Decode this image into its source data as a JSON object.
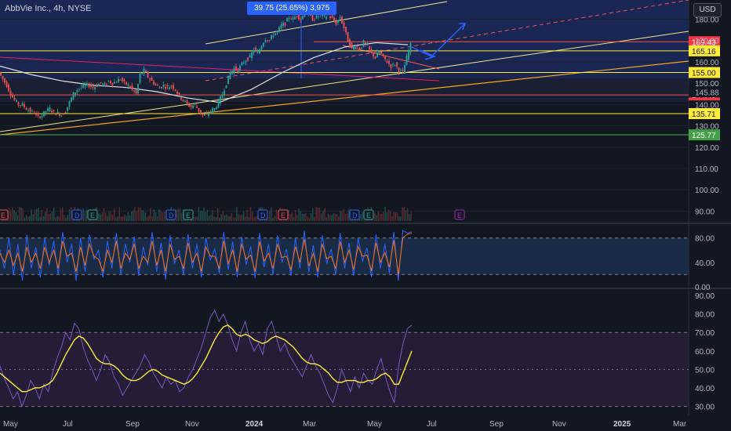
{
  "header": {
    "symbol": "AbbVie Inc., 4h, NYSE",
    "currency": "USD",
    "measure": "39.75 (25.65%) 3,975"
  },
  "colors": {
    "background": "#131722",
    "up": "#26a69a",
    "down": "#ef5350",
    "accent": "#2962ff",
    "stoch_k": "#2962ff",
    "stoch_d": "#ff6d00",
    "rsi": "#7e57c2",
    "rsi_ma": "#ffeb3b",
    "channel": "#f0e68c",
    "trend": "#f5a623"
  },
  "chart_data": [
    {
      "type": "candlestick",
      "panel": "price",
      "y_axis_ticks": [
        "180.00",
        "170.00",
        "160.00",
        "150.00",
        "145.88",
        "140.00",
        "130.00",
        "120.00",
        "110.00",
        "100.00",
        "90.00"
      ],
      "y_tick_values": [
        180,
        170,
        160,
        150,
        145.88,
        140,
        130,
        120,
        110,
        100,
        90
      ],
      "ylim": [
        85,
        189
      ],
      "x_axis_ticks": [
        "May",
        "Jul",
        "Sep",
        "Nov",
        "2024",
        "Mar",
        "May",
        "Jul",
        "Sep",
        "Nov",
        "2025",
        "Mar"
      ],
      "x_tick_labels_bold": [
        "2024",
        "2025"
      ],
      "price_path": [
        [
          0,
          155
        ],
        [
          5,
          152
        ],
        [
          10,
          149
        ],
        [
          15,
          145
        ],
        [
          20,
          142
        ],
        [
          25,
          140
        ],
        [
          30,
          140
        ],
        [
          35,
          138
        ],
        [
          40,
          137
        ],
        [
          45,
          136
        ],
        [
          50,
          134
        ],
        [
          55,
          135
        ],
        [
          60,
          137
        ],
        [
          65,
          138
        ],
        [
          70,
          136
        ],
        [
          75,
          136
        ],
        [
          80,
          135
        ],
        [
          85,
          137
        ],
        [
          90,
          141
        ],
        [
          95,
          145
        ],
        [
          100,
          147
        ],
        [
          105,
          148
        ],
        [
          110,
          149
        ],
        [
          115,
          149
        ],
        [
          120,
          148
        ],
        [
          125,
          149
        ],
        [
          130,
          150
        ],
        [
          135,
          149
        ],
        [
          140,
          151
        ],
        [
          145,
          150
        ],
        [
          150,
          151
        ],
        [
          155,
          152
        ],
        [
          160,
          150
        ],
        [
          165,
          149
        ],
        [
          170,
          147
        ],
        [
          175,
          145
        ],
        [
          180,
          154
        ],
        [
          185,
          156
        ],
        [
          190,
          153
        ],
        [
          195,
          151
        ],
        [
          200,
          149
        ],
        [
          205,
          148
        ],
        [
          210,
          149
        ],
        [
          215,
          148
        ],
        [
          220,
          149
        ],
        [
          225,
          147
        ],
        [
          230,
          144
        ],
        [
          235,
          142
        ],
        [
          240,
          140
        ],
        [
          245,
          139
        ],
        [
          250,
          140
        ],
        [
          255,
          137
        ],
        [
          260,
          135
        ],
        [
          265,
          135
        ],
        [
          270,
          137
        ],
        [
          275,
          138
        ],
        [
          280,
          141
        ],
        [
          285,
          145
        ],
        [
          290,
          150
        ],
        [
          295,
          155
        ],
        [
          300,
          157
        ],
        [
          305,
          156
        ],
        [
          310,
          159
        ],
        [
          315,
          161
        ],
        [
          320,
          162
        ],
        [
          325,
          166
        ],
        [
          330,
          164
        ],
        [
          335,
          168
        ],
        [
          340,
          171
        ],
        [
          345,
          170
        ],
        [
          350,
          173
        ],
        [
          355,
          174
        ],
        [
          360,
          177
        ],
        [
          365,
          178
        ],
        [
          370,
          181
        ],
        [
          375,
          180
        ],
        [
          380,
          182
        ],
        [
          385,
          180
        ],
        [
          390,
          183
        ],
        [
          395,
          182
        ],
        [
          400,
          180
        ],
        [
          405,
          181
        ],
        [
          410,
          182
        ],
        [
          415,
          181
        ],
        [
          420,
          182
        ],
        [
          425,
          180
        ],
        [
          430,
          178
        ],
        [
          435,
          181
        ],
        [
          440,
          176
        ],
        [
          445,
          170
        ],
        [
          450,
          166
        ],
        [
          455,
          168
        ],
        [
          460,
          166
        ],
        [
          465,
          169
        ],
        [
          470,
          167
        ],
        [
          475,
          164
        ],
        [
          480,
          162
        ],
        [
          485,
          165
        ],
        [
          490,
          162
        ],
        [
          495,
          160
        ],
        [
          500,
          158
        ],
        [
          505,
          159
        ],
        [
          510,
          156
        ],
        [
          515,
          155
        ],
        [
          520,
          162
        ],
        [
          525,
          168
        ]
      ],
      "horizontal_levels": [
        {
          "label": "169.43",
          "value": 169.43,
          "style": "red"
        },
        {
          "label": "165.16",
          "value": 165.16,
          "style": "yellow"
        },
        {
          "label": "155.00",
          "value": 155,
          "style": "yellow"
        },
        {
          "label": "144.48",
          "value": 144.48,
          "style": "red"
        },
        {
          "label": "135.71",
          "value": 135.71,
          "style": "yellow"
        },
        {
          "label": "125.77",
          "value": 125.77,
          "style": "green"
        }
      ],
      "moving_average": [
        [
          0,
          158
        ],
        [
          40,
          154
        ],
        [
          80,
          151
        ],
        [
          120,
          149
        ],
        [
          160,
          148
        ],
        [
          200,
          146
        ],
        [
          240,
          143
        ],
        [
          280,
          141
        ],
        [
          320,
          147
        ],
        [
          360,
          155
        ],
        [
          400,
          162
        ],
        [
          440,
          167
        ],
        [
          480,
          169
        ],
        [
          520,
          168
        ]
      ],
      "event_markers": [
        {
          "x": 4,
          "label": "E",
          "color": "#ef5350"
        },
        {
          "x": 98,
          "label": "D",
          "color": "#2962ff"
        },
        {
          "x": 118,
          "label": "E",
          "color": "#26a69a"
        },
        {
          "x": 218,
          "label": "D",
          "color": "#2962ff"
        },
        {
          "x": 240,
          "label": "E",
          "color": "#26a69a"
        },
        {
          "x": 335,
          "label": "D",
          "color": "#2962ff"
        },
        {
          "x": 361,
          "label": "E",
          "color": "#ef5350"
        },
        {
          "x": 452,
          "label": "D",
          "color": "#2962ff"
        },
        {
          "x": 470,
          "label": "E",
          "color": "#26a69a"
        },
        {
          "x": 586,
          "label": "E",
          "color": "#9c27b0"
        }
      ]
    },
    {
      "type": "line",
      "panel": "stochastic",
      "y_axis_ticks": [
        "80.00",
        "40.00",
        "0.00"
      ],
      "y_tick_values": [
        80,
        40,
        0
      ],
      "ylim": [
        0,
        100
      ],
      "bands": [
        80,
        20
      ],
      "series": [
        {
          "values": [
            60,
            30,
            80,
            20,
            70,
            10,
            85,
            30,
            65,
            15,
            80,
            35,
            75,
            20,
            90,
            40,
            70,
            10,
            80,
            25,
            85,
            45,
            60,
            15,
            75,
            30,
            88,
            20,
            70,
            40,
            82,
            18,
            65,
            35,
            90,
            25,
            72,
            12,
            84,
            38,
            60,
            20,
            86,
            30,
            70,
            15,
            80,
            44,
            62,
            22,
            90,
            28,
            74,
            16,
            82,
            36,
            66,
            14,
            88,
            32,
            70,
            20,
            84,
            40,
            62,
            18,
            80,
            30,
            92,
            24,
            68,
            15,
            84,
            38,
            62,
            20,
            88,
            30,
            72,
            18,
            80,
            42,
            64,
            16,
            86,
            30,
            70,
            22,
            90,
            10,
            92,
            88,
            90
          ]
        },
        {
          "values": [
            55,
            40,
            60,
            35,
            55,
            25,
            65,
            40,
            55,
            30,
            65,
            40,
            60,
            30,
            75,
            50,
            55,
            25,
            65,
            35,
            70,
            50,
            45,
            25,
            60,
            40,
            75,
            30,
            55,
            45,
            70,
            30,
            50,
            40,
            75,
            35,
            60,
            25,
            70,
            45,
            50,
            30,
            72,
            40,
            55,
            25,
            65,
            50,
            50,
            30,
            75,
            38,
            60,
            25,
            70,
            45,
            52,
            25,
            74,
            42,
            55,
            30,
            70,
            48,
            50,
            28,
            66,
            40,
            78,
            34,
            55,
            25,
            70,
            46,
            50,
            30,
            74,
            40,
            60,
            28,
            66,
            50,
            52,
            26,
            72,
            40,
            56,
            32,
            76,
            20,
            80,
            86,
            88
          ]
        }
      ]
    },
    {
      "type": "line",
      "panel": "rsi",
      "y_axis_ticks": [
        "90.00",
        "80.00",
        "70.00",
        "60.00",
        "50.00",
        "40.00",
        "30.00"
      ],
      "y_tick_values": [
        90,
        80,
        70,
        60,
        50,
        40,
        30
      ],
      "ylim": [
        26,
        93
      ],
      "bands": [
        70,
        30
      ],
      "series": [
        {
          "values": [
            52,
            45,
            40,
            34,
            38,
            30,
            36,
            44,
            40,
            34,
            42,
            38,
            48,
            56,
            62,
            70,
            66,
            75,
            72,
            62,
            55,
            50,
            44,
            50,
            58,
            54,
            46,
            42,
            36,
            40,
            44,
            48,
            52,
            58,
            54,
            48,
            44,
            40,
            46,
            42,
            44,
            38,
            40,
            46,
            50,
            56,
            62,
            70,
            78,
            82,
            76,
            80,
            74,
            66,
            60,
            70,
            76,
            66,
            60,
            64,
            58,
            72,
            76,
            68,
            60,
            64,
            58,
            54,
            50,
            46,
            52,
            58,
            52,
            48,
            42,
            36,
            32,
            40,
            50,
            44,
            38,
            46,
            40,
            48,
            44,
            42,
            50,
            56,
            46,
            38,
            32,
            52,
            64,
            72,
            74
          ]
        },
        {
          "values": [
            48,
            46,
            44,
            42,
            40,
            38,
            38,
            39,
            40,
            40,
            41,
            42,
            44,
            48,
            53,
            58,
            62,
            66,
            68,
            67,
            64,
            60,
            56,
            54,
            53,
            53,
            52,
            50,
            47,
            45,
            44,
            44,
            45,
            47,
            49,
            50,
            49,
            47,
            46,
            45,
            44,
            43,
            42,
            43,
            45,
            48,
            52,
            56,
            61,
            66,
            70,
            73,
            74,
            72,
            69,
            68,
            69,
            68,
            66,
            65,
            64,
            65,
            67,
            68,
            67,
            66,
            64,
            62,
            59,
            56,
            54,
            53,
            53,
            52,
            50,
            48,
            45,
            43,
            43,
            44,
            44,
            44,
            43,
            43,
            44,
            44,
            45,
            47,
            48,
            46,
            42,
            42,
            48,
            54,
            60
          ]
        }
      ]
    }
  ]
}
